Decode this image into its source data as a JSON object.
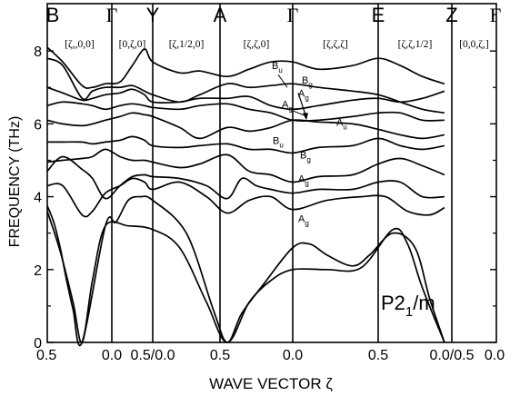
{
  "chart_data": {
    "type": "line",
    "xlabel": "WAVE VECTOR ζ",
    "ylabel": "FREQUENCY  (THz)",
    "ylim": [
      0,
      9.3
    ],
    "yticks": [
      0,
      2,
      4,
      6,
      8
    ],
    "grid": false,
    "annotation": {
      "compound": "P2",
      "sub": "1",
      "suffix": "/m"
    },
    "high_symmetry_points": [
      "B",
      "Γ",
      "Y",
      "A",
      "Γ",
      "E",
      "Z",
      "Γ"
    ],
    "segments": [
      {
        "label": "[ζ,,0,0]",
        "from": 0.5,
        "to": 0.0
      },
      {
        "label": "[0,ζ,0]",
        "from": 0.0,
        "to": 0.5
      },
      {
        "label": "[ζ,1/2,0]",
        "from": 0.0,
        "to": 0.5
      },
      {
        "label": "[ζ,ζ,0]",
        "from": 0.5,
        "to": 0.0
      },
      {
        "label": "[ζ,ζ,ζ]",
        "from": 0.0,
        "to": 0.5
      },
      {
        "label": "[ζ,ζ,1/2]",
        "from": 0.5,
        "to": 0.0
      },
      {
        "label": "[0,0,ζ,]",
        "from": 0.5,
        "to": 0.0
      }
    ],
    "x_tick_labels": [
      "0.5",
      "0.0",
      "0.5/0.0",
      "0.5",
      "0.0",
      "0.5",
      "0.0/0.5",
      "0.0"
    ],
    "mode_labels": [
      {
        "main": "B",
        "sub": "u",
        "omega": 7.5
      },
      {
        "main": "B",
        "sub": "g",
        "omega": 7.1
      },
      {
        "main": "A",
        "sub": "g",
        "omega": 6.75
      },
      {
        "main": "A",
        "sub": "g",
        "omega": 6.45
      },
      {
        "main": "A",
        "sub": "u",
        "omega": 5.95
      },
      {
        "main": "B",
        "sub": "u",
        "omega": 5.45
      },
      {
        "main": "B",
        "sub": "g",
        "omega": 5.05
      },
      {
        "main": "A",
        "sub": "g",
        "omega": 4.4
      },
      {
        "main": "A",
        "sub": "g",
        "omega": 3.3
      }
    ],
    "branches": [
      {
        "points": [
          [
            0.0,
            3.75
          ],
          [
            0.05,
            3.3
          ],
          [
            0.1,
            2.6
          ],
          [
            0.15,
            1.7
          ],
          [
            0.2,
            0.9
          ],
          [
            0.27,
            0.0
          ],
          [
            0.45,
            3.2
          ],
          [
            0.55,
            3.3
          ],
          [
            0.7,
            3.9
          ],
          [
            0.85,
            4.0
          ],
          [
            1.0,
            3.9
          ],
          [
            1.25,
            3.0
          ],
          [
            1.45,
            0.9
          ],
          [
            1.55,
            0.0
          ],
          [
            1.65,
            0.8
          ],
          [
            1.8,
            1.6
          ],
          [
            2.0,
            2.6
          ],
          [
            2.1,
            2.7
          ],
          [
            2.2,
            2.4
          ],
          [
            2.35,
            2.1
          ],
          [
            2.45,
            2.4
          ],
          [
            2.6,
            3.0
          ],
          [
            2.75,
            2.6
          ],
          [
            2.85,
            1.2
          ],
          [
            2.95,
            0.0
          ]
        ]
      },
      {
        "points": [
          [
            0.0,
            3.6
          ],
          [
            0.1,
            2.5
          ],
          [
            0.2,
            1.1
          ],
          [
            0.27,
            0.0
          ],
          [
            0.35,
            1.7
          ],
          [
            0.45,
            3.2
          ],
          [
            0.7,
            3.2
          ],
          [
            1.0,
            3.1
          ],
          [
            1.2,
            2.6
          ],
          [
            1.4,
            1.1
          ],
          [
            1.55,
            0.0
          ],
          [
            1.7,
            1.1
          ],
          [
            1.85,
            1.7
          ],
          [
            2.0,
            2.0
          ],
          [
            2.2,
            2.0
          ],
          [
            2.4,
            2.05
          ],
          [
            2.6,
            3.1
          ],
          [
            2.7,
            2.7
          ],
          [
            2.8,
            1.5
          ],
          [
            2.95,
            0.0
          ]
        ]
      },
      {
        "points": [
          [
            0.0,
            4.3
          ],
          [
            0.12,
            4.3
          ],
          [
            0.27,
            3.5
          ],
          [
            0.35,
            3.6
          ],
          [
            0.45,
            4.1
          ],
          [
            0.6,
            4.3
          ],
          [
            0.75,
            4.5
          ],
          [
            0.9,
            4.4
          ],
          [
            1.0,
            4.2
          ],
          [
            1.2,
            4.4
          ],
          [
            1.4,
            4.0
          ],
          [
            1.55,
            3.55
          ],
          [
            1.7,
            3.9
          ],
          [
            1.85,
            4.0
          ],
          [
            2.0,
            3.65
          ],
          [
            2.2,
            3.9
          ],
          [
            2.4,
            4.0
          ],
          [
            2.55,
            4.0
          ],
          [
            2.7,
            3.6
          ],
          [
            2.85,
            3.5
          ],
          [
            2.95,
            3.7
          ]
        ]
      },
      {
        "points": [
          [
            0.0,
            4.7
          ],
          [
            0.12,
            5.1
          ],
          [
            0.27,
            4.75
          ],
          [
            0.35,
            4.5
          ],
          [
            0.45,
            3.95
          ],
          [
            0.6,
            4.3
          ],
          [
            0.75,
            4.55
          ],
          [
            0.9,
            4.6
          ],
          [
            1.0,
            4.55
          ],
          [
            1.2,
            4.5
          ],
          [
            1.4,
            4.3
          ],
          [
            1.55,
            3.95
          ],
          [
            1.65,
            4.5
          ],
          [
            1.75,
            4.3
          ],
          [
            1.85,
            4.2
          ],
          [
            2.0,
            4.1
          ],
          [
            2.15,
            4.2
          ],
          [
            2.35,
            4.2
          ],
          [
            2.5,
            4.4
          ],
          [
            2.65,
            4.4
          ],
          [
            2.8,
            4.0
          ],
          [
            2.95,
            4.0
          ]
        ]
      },
      {
        "points": [
          [
            0.0,
            4.95
          ],
          [
            0.12,
            5.0
          ],
          [
            0.27,
            5.05
          ],
          [
            0.35,
            5.1
          ],
          [
            0.45,
            5.3
          ],
          [
            0.6,
            5.1
          ],
          [
            0.75,
            5.0
          ],
          [
            0.9,
            5.0
          ],
          [
            1.0,
            4.95
          ],
          [
            1.2,
            4.8
          ],
          [
            1.35,
            4.9
          ],
          [
            1.55,
            5.15
          ],
          [
            1.7,
            4.7
          ],
          [
            1.85,
            4.6
          ],
          [
            2.0,
            4.4
          ],
          [
            2.15,
            4.55
          ],
          [
            2.35,
            4.6
          ],
          [
            2.5,
            4.9
          ],
          [
            2.65,
            5.05
          ],
          [
            2.8,
            4.85
          ],
          [
            2.95,
            4.6
          ]
        ]
      },
      {
        "points": [
          [
            0.0,
            5.5
          ],
          [
            0.12,
            5.5
          ],
          [
            0.27,
            5.5
          ],
          [
            0.35,
            5.45
          ],
          [
            0.45,
            5.5
          ],
          [
            0.6,
            5.55
          ],
          [
            0.75,
            5.65
          ],
          [
            0.9,
            5.55
          ],
          [
            1.0,
            5.4
          ],
          [
            1.2,
            5.35
          ],
          [
            1.35,
            5.4
          ],
          [
            1.55,
            5.45
          ],
          [
            1.7,
            5.3
          ],
          [
            1.85,
            5.3
          ],
          [
            2.0,
            5.2
          ],
          [
            2.15,
            5.35
          ],
          [
            2.35,
            5.4
          ],
          [
            2.5,
            5.6
          ],
          [
            2.65,
            5.4
          ],
          [
            2.8,
            5.3
          ],
          [
            2.95,
            5.4
          ]
        ]
      },
      {
        "points": [
          [
            0.0,
            6.1
          ],
          [
            0.12,
            6.0
          ],
          [
            0.27,
            5.95
          ],
          [
            0.35,
            6.0
          ],
          [
            0.45,
            6.1
          ],
          [
            0.6,
            6.2
          ],
          [
            0.75,
            6.3
          ],
          [
            0.9,
            6.25
          ],
          [
            1.0,
            6.2
          ],
          [
            1.2,
            5.9
          ],
          [
            1.35,
            5.6
          ],
          [
            1.55,
            5.9
          ],
          [
            1.7,
            5.8
          ],
          [
            1.85,
            5.9
          ],
          [
            2.0,
            6.1
          ],
          [
            2.15,
            6.05
          ],
          [
            2.35,
            6.0
          ],
          [
            2.5,
            5.85
          ],
          [
            2.65,
            5.7
          ],
          [
            2.8,
            5.6
          ],
          [
            2.95,
            5.7
          ]
        ]
      },
      {
        "points": [
          [
            0.0,
            6.5
          ],
          [
            0.12,
            6.6
          ],
          [
            0.27,
            6.55
          ],
          [
            0.35,
            6.5
          ],
          [
            0.45,
            6.4
          ],
          [
            0.6,
            6.5
          ],
          [
            0.75,
            6.55
          ],
          [
            0.9,
            6.5
          ],
          [
            1.0,
            6.45
          ],
          [
            1.2,
            6.4
          ],
          [
            1.35,
            6.5
          ],
          [
            1.55,
            6.55
          ],
          [
            1.7,
            6.4
          ],
          [
            1.85,
            6.3
          ],
          [
            2.0,
            6.1
          ],
          [
            2.15,
            6.1
          ],
          [
            2.35,
            6.2
          ],
          [
            2.5,
            6.3
          ],
          [
            2.65,
            6.3
          ],
          [
            2.8,
            6.1
          ],
          [
            2.95,
            6.1
          ]
        ]
      },
      {
        "points": [
          [
            0.0,
            7.0
          ],
          [
            0.12,
            6.85
          ],
          [
            0.27,
            6.65
          ],
          [
            0.35,
            6.7
          ],
          [
            0.45,
            6.8
          ],
          [
            0.6,
            6.85
          ],
          [
            0.75,
            6.95
          ],
          [
            0.9,
            6.8
          ],
          [
            1.0,
            6.6
          ],
          [
            1.2,
            6.6
          ],
          [
            1.35,
            6.7
          ],
          [
            1.55,
            6.7
          ],
          [
            1.7,
            6.75
          ],
          [
            1.85,
            6.5
          ],
          [
            2.0,
            6.4
          ],
          [
            2.15,
            6.5
          ],
          [
            2.35,
            6.65
          ],
          [
            2.5,
            6.7
          ],
          [
            2.65,
            6.6
          ],
          [
            2.8,
            6.7
          ],
          [
            2.95,
            6.9
          ]
        ]
      },
      {
        "points": [
          [
            0.0,
            7.8
          ],
          [
            0.12,
            7.6
          ],
          [
            0.27,
            6.7
          ],
          [
            0.35,
            6.9
          ],
          [
            0.45,
            7.0
          ],
          [
            0.6,
            7.0
          ],
          [
            0.75,
            7.05
          ],
          [
            0.9,
            6.9
          ],
          [
            1.0,
            6.8
          ],
          [
            1.2,
            6.6
          ],
          [
            1.35,
            6.8
          ],
          [
            1.55,
            7.1
          ],
          [
            1.7,
            7.0
          ],
          [
            1.85,
            7.05
          ],
          [
            2.0,
            7.1
          ],
          [
            2.15,
            7.0
          ],
          [
            2.35,
            6.9
          ],
          [
            2.5,
            6.8
          ],
          [
            2.65,
            6.6
          ],
          [
            2.8,
            6.4
          ],
          [
            2.95,
            6.3
          ]
        ]
      },
      {
        "points": [
          [
            0.0,
            8.1
          ],
          [
            0.12,
            7.7
          ],
          [
            0.27,
            7.05
          ],
          [
            0.35,
            7.0
          ],
          [
            0.45,
            7.1
          ],
          [
            0.6,
            7.15
          ],
          [
            0.75,
            7.6
          ],
          [
            0.9,
            8.05
          ],
          [
            1.0,
            7.7
          ],
          [
            1.2,
            7.4
          ],
          [
            1.35,
            7.45
          ],
          [
            1.55,
            7.3
          ],
          [
            1.7,
            7.5
          ],
          [
            1.85,
            7.7
          ],
          [
            2.0,
            7.7
          ],
          [
            2.15,
            7.5
          ],
          [
            2.35,
            7.6
          ],
          [
            2.5,
            7.8
          ],
          [
            2.65,
            7.6
          ],
          [
            2.8,
            7.3
          ],
          [
            2.95,
            7.1
          ]
        ]
      }
    ]
  }
}
